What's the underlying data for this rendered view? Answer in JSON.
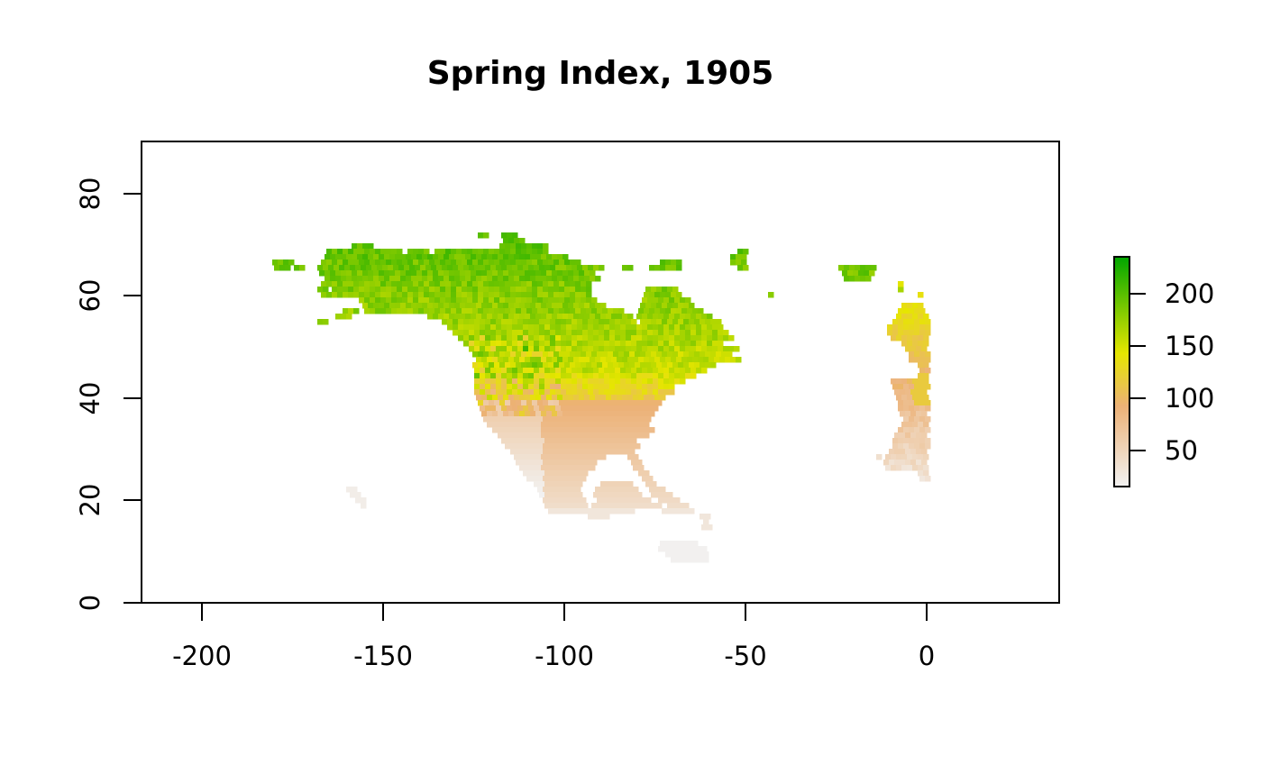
{
  "chart_data": {
    "type": "heatmap",
    "title": "Spring Index, 1905",
    "xlabel": "",
    "ylabel": "",
    "xlim": [
      -217,
      36
    ],
    "ylim": [
      0,
      90
    ],
    "x_ticks": [
      "-200",
      "-150",
      "-100",
      "-50",
      "0"
    ],
    "x_tick_values": [
      -200,
      -150,
      -100,
      -50,
      0
    ],
    "y_ticks": [
      "0",
      "20",
      "40",
      "60",
      "80"
    ],
    "y_tick_values": [
      0,
      20,
      40,
      60,
      80
    ],
    "legend": {
      "placement": "right",
      "range": [
        14,
        234
      ],
      "ticks": [
        "50",
        "100",
        "150",
        "200"
      ],
      "tick_values": [
        50,
        100,
        150,
        200
      ],
      "colors": [
        "#f2f2f2",
        "#ecb176",
        "#e6e600",
        "#00a600"
      ]
    },
    "regions": [
      {
        "name": "North America",
        "value_range": [
          25,
          220
        ]
      },
      {
        "name": "Greenland",
        "value_range": [
          190,
          205
        ]
      },
      {
        "name": "Europe",
        "value_range": [
          40,
          160
        ]
      }
    ]
  }
}
